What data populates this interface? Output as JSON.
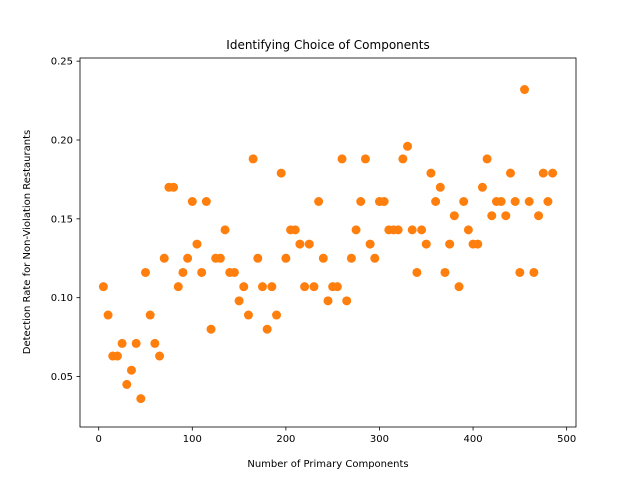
{
  "chart_data": {
    "type": "scatter",
    "title": "Identifying Choice of Components",
    "xlabel": "Number of Primary Components",
    "ylabel": "Detection Rate for Non-Violation Restaurants",
    "xlim": [
      -20,
      510
    ],
    "ylim": [
      0.018,
      0.252
    ],
    "xticks": [
      0,
      100,
      200,
      300,
      400,
      500
    ],
    "xtick_labels": [
      "0",
      "100",
      "200",
      "300",
      "400",
      "500"
    ],
    "yticks": [
      0.05,
      0.1,
      0.15,
      0.2,
      0.25
    ],
    "ytick_labels": [
      "0.05",
      "0.10",
      "0.15",
      "0.20",
      "0.25"
    ],
    "grid": false,
    "marker_color": "#ff7f0e",
    "series": [
      {
        "x": [
          5,
          10,
          15,
          20,
          25,
          30,
          35,
          40,
          45,
          50,
          55,
          60,
          65,
          70,
          75,
          80,
          85,
          90,
          95,
          100,
          105,
          110,
          115,
          120,
          125,
          130,
          135,
          140,
          145,
          150,
          155,
          160,
          165,
          170,
          175,
          180,
          185,
          190,
          195,
          200,
          205,
          210,
          215,
          220,
          225,
          230,
          235,
          240,
          245,
          250,
          255,
          260,
          265,
          270,
          275,
          280,
          285,
          290,
          295,
          300,
          305,
          310,
          315,
          320,
          325,
          330,
          335,
          340,
          345,
          350,
          355,
          360,
          365,
          370,
          375,
          380,
          385,
          390,
          395,
          400,
          405,
          410,
          415,
          420,
          425,
          430,
          435,
          440,
          445,
          450,
          455,
          460,
          465,
          470,
          475,
          480,
          485
        ],
        "y": [
          0.107,
          0.089,
          0.063,
          0.063,
          0.071,
          0.045,
          0.054,
          0.071,
          0.036,
          0.116,
          0.089,
          0.071,
          0.063,
          0.125,
          0.17,
          0.17,
          0.107,
          0.116,
          0.125,
          0.161,
          0.134,
          0.116,
          0.161,
          0.08,
          0.125,
          0.125,
          0.143,
          0.116,
          0.116,
          0.098,
          0.107,
          0.089,
          0.188,
          0.125,
          0.107,
          0.08,
          0.107,
          0.089,
          0.179,
          0.125,
          0.143,
          0.143,
          0.134,
          0.107,
          0.134,
          0.107,
          0.161,
          0.125,
          0.098,
          0.107,
          0.107,
          0.188,
          0.098,
          0.125,
          0.143,
          0.161,
          0.188,
          0.134,
          0.125,
          0.161,
          0.161,
          0.143,
          0.143,
          0.143,
          0.188,
          0.196,
          0.143,
          0.116,
          0.143,
          0.134,
          0.179,
          0.161,
          0.17,
          0.116,
          0.134,
          0.152,
          0.107,
          0.161,
          0.143,
          0.134,
          0.134,
          0.17,
          0.188,
          0.152,
          0.161,
          0.161,
          0.152,
          0.179,
          0.161,
          0.116,
          0.232,
          0.161,
          0.116,
          0.152,
          0.179,
          0.161,
          0.179
        ]
      }
    ]
  }
}
